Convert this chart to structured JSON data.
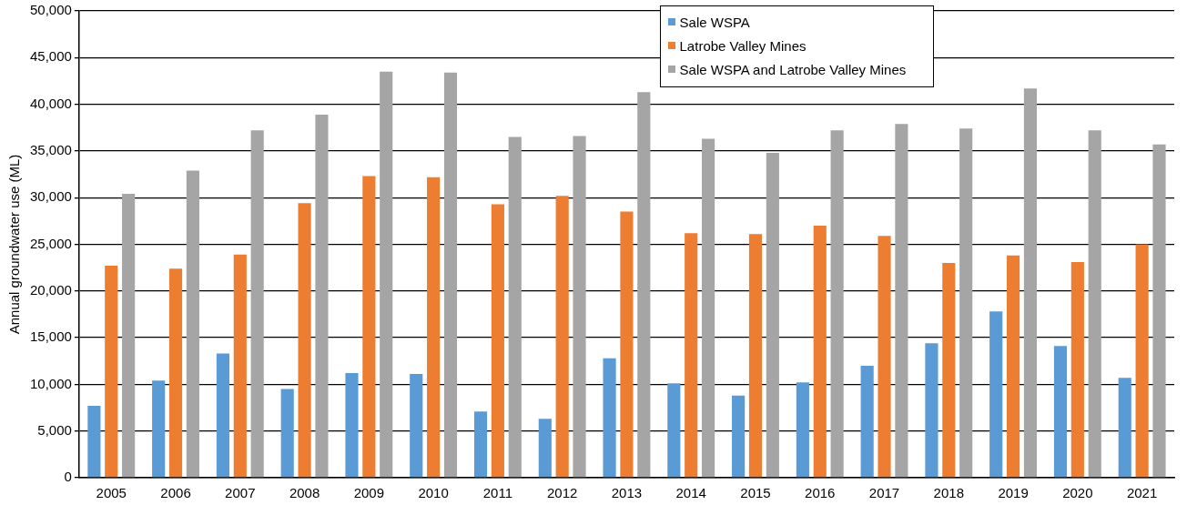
{
  "chart_data": {
    "type": "bar",
    "ylabel": "Annual groundwater use (ML)",
    "categories": [
      "2005",
      "2006",
      "2007",
      "2008",
      "2009",
      "2010",
      "2011",
      "2012",
      "2013",
      "2014",
      "2015",
      "2016",
      "2017",
      "2018",
      "2019",
      "2020",
      "2021"
    ],
    "series": [
      {
        "name": "Sale WSPA",
        "color": "#5b9bd5",
        "values": [
          7700,
          10400,
          13300,
          9500,
          11200,
          11100,
          7100,
          6300,
          12800,
          10100,
          8800,
          10200,
          12000,
          14400,
          17800,
          14100,
          10700
        ]
      },
      {
        "name": "Latrobe Valley Mines",
        "color": "#ed7d31",
        "values": [
          22700,
          22400,
          23900,
          29400,
          32300,
          32200,
          29300,
          30200,
          28500,
          26200,
          26100,
          27000,
          25900,
          23000,
          23800,
          23100,
          25000
        ]
      },
      {
        "name": "Sale WSPA and Latrobe Valley Mines",
        "color": "#a5a5a5",
        "values": [
          30400,
          32900,
          37200,
          38900,
          43500,
          43400,
          36500,
          36600,
          41300,
          36300,
          34800,
          37200,
          37900,
          37400,
          41700,
          37200,
          35700
        ]
      }
    ],
    "ylim": [
      0,
      50000
    ],
    "yticks": [
      {
        "value": 0,
        "label": "0"
      },
      {
        "value": 5000,
        "label": "5,000"
      },
      {
        "value": 10000,
        "label": "10,000"
      },
      {
        "value": 15000,
        "label": "15,000"
      },
      {
        "value": 20000,
        "label": "20,000"
      },
      {
        "value": 25000,
        "label": "25,000"
      },
      {
        "value": 30000,
        "label": "30,000"
      },
      {
        "value": 35000,
        "label": "35,000"
      },
      {
        "value": 40000,
        "label": "40,000"
      },
      {
        "value": 45000,
        "label": "45,000"
      },
      {
        "value": 50000,
        "label": "50,000"
      }
    ],
    "grid": "y",
    "legend": "top right"
  }
}
